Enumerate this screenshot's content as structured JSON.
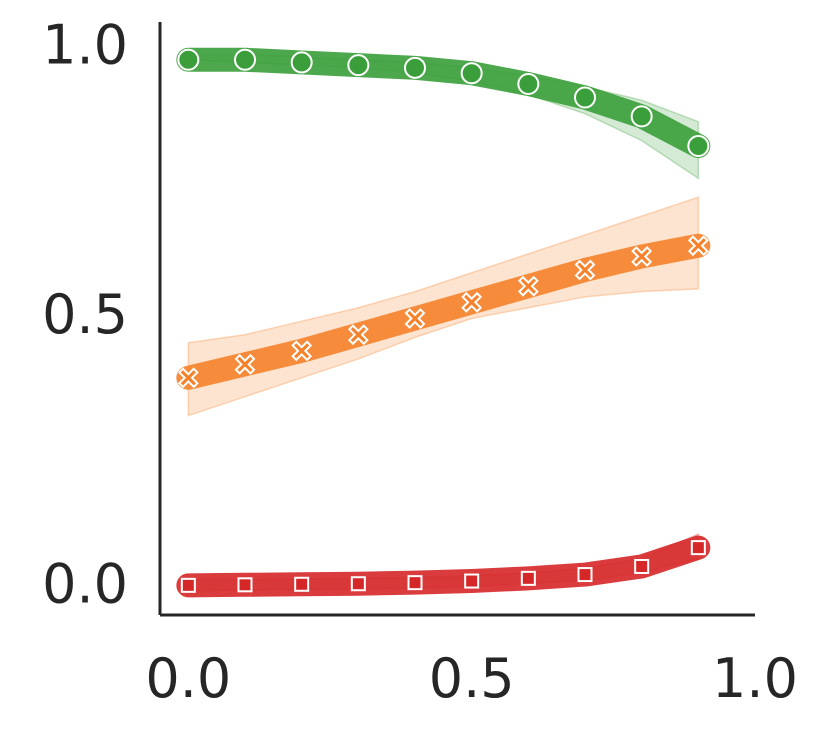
{
  "chart_data": {
    "type": "line",
    "title": "",
    "xlabel": "",
    "ylabel": "",
    "xlim": [
      -0.05,
      1.0
    ],
    "ylim": [
      -0.05,
      1.05
    ],
    "grid": false,
    "legend": "none",
    "x_ticks": [
      "0.0",
      "0.5",
      "1.0"
    ],
    "y_ticks": [
      "0.0",
      "0.5",
      "1.0"
    ],
    "x": [
      0.0,
      0.1,
      0.2,
      0.3,
      0.4,
      0.5,
      0.6,
      0.7,
      0.8,
      0.9
    ],
    "series": [
      {
        "marker": "circle",
        "color": "#3a9e3a",
        "values": [
          0.98,
          0.98,
          0.975,
          0.97,
          0.965,
          0.955,
          0.935,
          0.91,
          0.875,
          0.82
        ],
        "band_low": [
          0.98,
          0.975,
          0.97,
          0.965,
          0.955,
          0.94,
          0.915,
          0.88,
          0.83,
          0.76
        ],
        "band_high": [
          0.99,
          0.99,
          0.985,
          0.98,
          0.975,
          0.965,
          0.95,
          0.93,
          0.905,
          0.865
        ]
      },
      {
        "marker": "x",
        "color": "#f5822a",
        "values": [
          0.39,
          0.415,
          0.44,
          0.47,
          0.5,
          0.53,
          0.56,
          0.59,
          0.615,
          0.635
        ],
        "band_low": [
          0.32,
          0.355,
          0.39,
          0.425,
          0.465,
          0.5,
          0.52,
          0.54,
          0.55,
          0.555
        ],
        "band_high": [
          0.455,
          0.47,
          0.495,
          0.52,
          0.55,
          0.585,
          0.62,
          0.655,
          0.69,
          0.725
        ]
      },
      {
        "marker": "square",
        "color": "#d62728",
        "values": [
          0.005,
          0.006,
          0.007,
          0.008,
          0.01,
          0.013,
          0.018,
          0.025,
          0.04,
          0.075
        ],
        "band_low": [
          -0.005,
          -0.004,
          -0.003,
          -0.002,
          0.0,
          0.003,
          0.008,
          0.014,
          0.028,
          0.055
        ],
        "band_high": [
          0.015,
          0.016,
          0.017,
          0.018,
          0.02,
          0.023,
          0.028,
          0.037,
          0.055,
          0.1
        ]
      }
    ]
  }
}
